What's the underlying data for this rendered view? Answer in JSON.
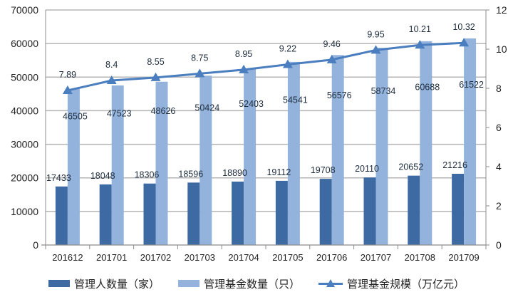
{
  "chart_data": {
    "type": "bar+line",
    "title": "",
    "categories": [
      "201612",
      "201701",
      "201702",
      "201703",
      "201704",
      "201705",
      "201706",
      "201707",
      "201708",
      "201709"
    ],
    "series": [
      {
        "name": "管理人数量（家）",
        "type": "bar",
        "axis": "left",
        "color": "#3e6aa3",
        "values": [
          17433,
          18048,
          18306,
          18596,
          18890,
          19112,
          19708,
          20110,
          20652,
          21216
        ]
      },
      {
        "name": "管理基金数量（只）",
        "type": "bar",
        "axis": "left",
        "color": "#93b3dc",
        "values": [
          46505,
          47523,
          48626,
          50424,
          52403,
          54541,
          56576,
          58734,
          60688,
          61522
        ]
      },
      {
        "name": "管理基金规模（万亿元）",
        "type": "line",
        "axis": "right",
        "color": "#4a7ebf",
        "marker": "triangle",
        "values": [
          7.89,
          8.4,
          8.55,
          8.75,
          8.95,
          9.22,
          9.46,
          9.95,
          10.21,
          10.32
        ]
      }
    ],
    "left_axis": {
      "min": 0,
      "max": 70000,
      "step": 10000,
      "ticks": [
        "0",
        "10000",
        "20000",
        "30000",
        "40000",
        "50000",
        "60000",
        "70000"
      ]
    },
    "right_axis": {
      "min": 0,
      "max": 12,
      "step": 2,
      "ticks": [
        "0",
        "2",
        "4",
        "6",
        "8",
        "10",
        "12"
      ]
    },
    "xlabel": "",
    "ylabel": "",
    "y2label": "",
    "grid": true,
    "legend_position": "bottom"
  },
  "legend": {
    "items": [
      {
        "label": "管理人数量（家）",
        "color": "#3e6aa3",
        "kind": "bar"
      },
      {
        "label": "管理基金数量（只）",
        "color": "#93b3dc",
        "kind": "bar"
      },
      {
        "label": "管理基金规模（万亿元）",
        "color": "#4a7ebf",
        "kind": "line"
      }
    ]
  },
  "colors": {
    "grid": "#b5b5b5",
    "axis": "#8c8c8c"
  }
}
